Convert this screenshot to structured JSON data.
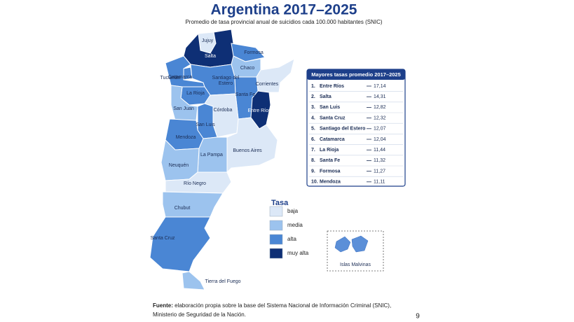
{
  "header": {
    "title": "Argentina 2017–2025",
    "subtitle": "Promedio de tasa provincial anual de suicidios cada 100.000 habitantes (SNIC)"
  },
  "provinces": [
    {
      "label": "Jujuy",
      "tasa": "baja"
    },
    {
      "label": "Salta",
      "tasa": "muy alta"
    },
    {
      "label": "Formosa",
      "tasa": "alta"
    },
    {
      "label": "Chaco",
      "tasa": "media"
    },
    {
      "label": "Corrientes",
      "tasa": "baja"
    },
    {
      "label": "Tucumán",
      "tasa": "alta"
    },
    {
      "label": "Catamarca",
      "tasa": "alta"
    },
    {
      "label": "Santiago del Estero",
      "tasa": "alta"
    },
    {
      "label": "Santa Fe",
      "tasa": "alta"
    },
    {
      "label": "Entre Ríos",
      "tasa": "muy alta"
    },
    {
      "label": "La Rioja",
      "tasa": "alta"
    },
    {
      "label": "San Juan",
      "tasa": "media"
    },
    {
      "label": "Córdoba",
      "tasa": "baja"
    },
    {
      "label": "San Luis",
      "tasa": "alta"
    },
    {
      "label": "Mendoza",
      "tasa": "alta"
    },
    {
      "label": "La Pampa",
      "tasa": "media"
    },
    {
      "label": "Buenos Aires",
      "tasa": "baja"
    },
    {
      "label": "Neuquén",
      "tasa": "media"
    },
    {
      "label": "Río Negro",
      "tasa": "baja"
    },
    {
      "label": "Chubut",
      "tasa": "media"
    },
    {
      "label": "Santa Cruz",
      "tasa": "alta"
    },
    {
      "label": "Tierra del Fuego",
      "tasa": "media"
    }
  ],
  "legend": {
    "title": "Tasa",
    "items": [
      {
        "label": "baja",
        "color": "#dce8f7"
      },
      {
        "label": "media",
        "color": "#9cc3ee"
      },
      {
        "label": "alta",
        "color": "#4a86d4"
      },
      {
        "label": "muy alta",
        "color": "#0e2f75"
      }
    ]
  },
  "malvinas": {
    "label": "Islas Malvinas"
  },
  "ranking": {
    "title": "Mayores tasas promedio 2017–2025",
    "rows": [
      {
        "rank": "1.",
        "province": "Entre Ríos",
        "value": "17,14"
      },
      {
        "rank": "2.",
        "province": "Salta",
        "value": "14,31"
      },
      {
        "rank": "3.",
        "province": "San Luis",
        "value": "12,82"
      },
      {
        "rank": "4.",
        "province": "Santa Cruz",
        "value": "12,32"
      },
      {
        "rank": "5.",
        "province": "Santiago del Estero",
        "value": "12,07"
      },
      {
        "rank": "6.",
        "province": "Catamarca",
        "value": "12,04"
      },
      {
        "rank": "7.",
        "province": "La Rioja",
        "value": "11,44"
      },
      {
        "rank": "8.",
        "province": "Santa Fe",
        "value": "11,32"
      },
      {
        "rank": "9.",
        "province": "Formosa",
        "value": "11,27"
      },
      {
        "rank": "10.",
        "province": "Mendoza",
        "value": "11,11"
      }
    ]
  },
  "footer": {
    "label": "Fuente:",
    "text": "elaboración propia sobre la base del Sistema Nacional de Información Criminal (SNIC),",
    "text2": "Ministerio de Seguridad de la Nación."
  },
  "page_number": "9"
}
